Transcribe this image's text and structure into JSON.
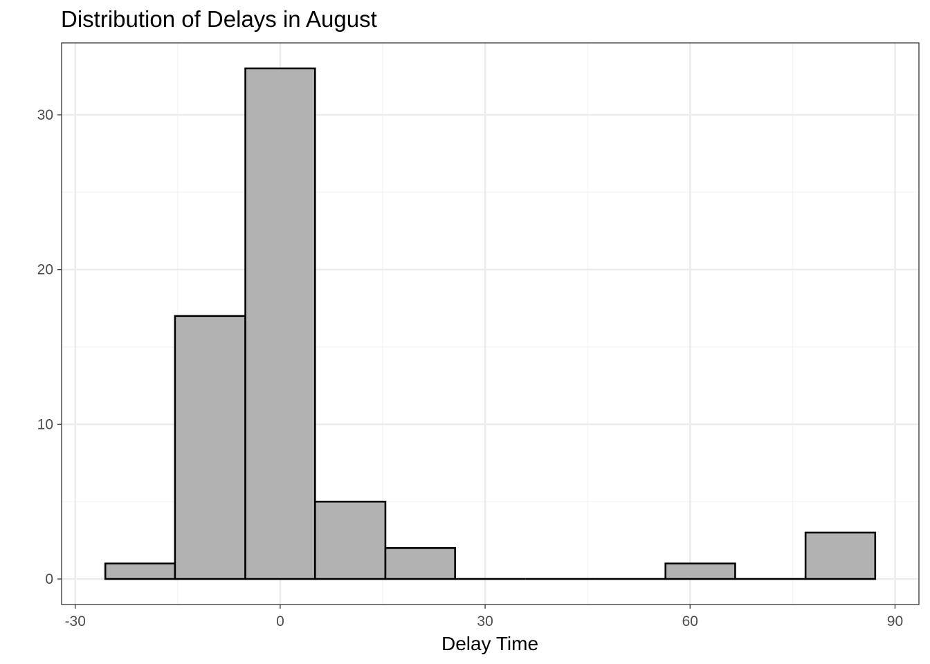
{
  "chart_data": {
    "type": "bar",
    "title": "Distribution of Delays in August",
    "xlabel": "Delay Time",
    "ylabel": "",
    "bin_width": 10.25,
    "bins": [
      {
        "start": -25.6,
        "end": -15.4,
        "count": 1
      },
      {
        "start": -15.4,
        "end": -5.1,
        "count": 17
      },
      {
        "start": -5.1,
        "end": 5.1,
        "count": 33
      },
      {
        "start": 5.1,
        "end": 15.4,
        "count": 5
      },
      {
        "start": 15.4,
        "end": 25.6,
        "count": 2
      },
      {
        "start": 25.6,
        "end": 35.9,
        "count": 0
      },
      {
        "start": 35.9,
        "end": 46.1,
        "count": 0
      },
      {
        "start": 46.1,
        "end": 56.4,
        "count": 0
      },
      {
        "start": 56.4,
        "end": 66.6,
        "count": 1
      },
      {
        "start": 66.6,
        "end": 76.9,
        "count": 0
      },
      {
        "start": 76.9,
        "end": 87.1,
        "count": 3
      }
    ],
    "x_ticks": [
      -30,
      0,
      30,
      60,
      90
    ],
    "x_tick_labels": [
      "-30",
      "0",
      "30",
      "60",
      "90"
    ],
    "y_ticks": [
      0,
      10,
      20,
      30
    ],
    "y_tick_labels": [
      "0",
      "10",
      "20",
      "30"
    ],
    "xlim": [
      -32,
      93.5
    ],
    "ylim": [
      -1.65,
      34.65
    ],
    "grid": true,
    "colors": {
      "bar_fill": "#b2b2b2",
      "bar_stroke": "#000000",
      "grid_major": "#ebebeb",
      "grid_minor": "#f4f4f4",
      "panel_border": "#333333"
    }
  }
}
